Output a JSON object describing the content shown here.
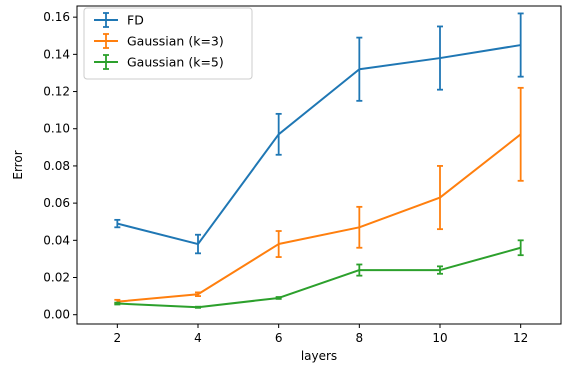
{
  "chart_data": {
    "type": "line",
    "xlabel": "layers",
    "ylabel": "Error",
    "x": [
      2,
      4,
      6,
      8,
      10,
      12
    ],
    "xlim": [
      1,
      13
    ],
    "ylim": [
      -0.005,
      0.166
    ],
    "xticks": [
      2,
      4,
      6,
      8,
      10,
      12
    ],
    "yticks": [
      0.0,
      0.02,
      0.04,
      0.06,
      0.08,
      0.1,
      0.12,
      0.14,
      0.16
    ],
    "ytick_labels": [
      "0.00",
      "0.02",
      "0.04",
      "0.06",
      "0.08",
      "0.10",
      "0.12",
      "0.14",
      "0.16"
    ],
    "grid": false,
    "legend_position": "upper-left",
    "series": [
      {
        "name": "FD",
        "color": "#1f77b4",
        "values": [
          0.049,
          0.038,
          0.097,
          0.132,
          0.138,
          0.145
        ],
        "errors": [
          0.002,
          0.005,
          0.011,
          0.017,
          0.017,
          0.017
        ]
      },
      {
        "name": "Gaussian (k=3)",
        "color": "#ff7f0e",
        "values": [
          0.007,
          0.011,
          0.038,
          0.047,
          0.063,
          0.097
        ],
        "errors": [
          0.001,
          0.001,
          0.007,
          0.011,
          0.017,
          0.025
        ]
      },
      {
        "name": "Gaussian (k=5)",
        "color": "#2ca02c",
        "values": [
          0.006,
          0.004,
          0.009,
          0.024,
          0.024,
          0.036
        ],
        "errors": [
          0.0005,
          0.0003,
          0.0005,
          0.003,
          0.002,
          0.004
        ]
      }
    ]
  }
}
